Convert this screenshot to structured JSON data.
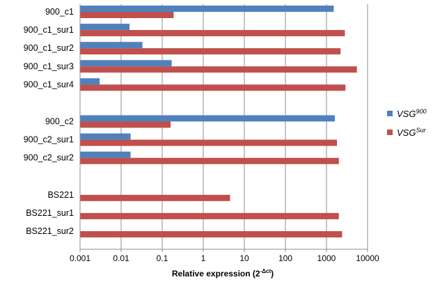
{
  "chart_data": {
    "type": "bar",
    "orientation": "horizontal",
    "x_scale": "log",
    "xlim": [
      0.001,
      10000
    ],
    "x_ticks": [
      "0.001",
      "0.01",
      "0.1",
      "1",
      "10",
      "100",
      "1000",
      "10000"
    ],
    "grid": true,
    "legend_position": "right",
    "xlabel": {
      "main": "Relative expression (2",
      "sup": "-Δct",
      "close": ")"
    },
    "categories": [
      "900_c1",
      "900_c1_sur1",
      "900_c1_sur2",
      "900_c1_sur3",
      "900_c1_sur4",
      "900_c2",
      "900_c2_sur1",
      "900_c2_sur2",
      "BS221",
      "BS221_sur1",
      "BS221_sur2"
    ],
    "groups": [
      [
        0,
        1,
        2,
        3,
        4
      ],
      [
        5,
        6,
        7
      ],
      [
        8,
        9,
        10
      ]
    ],
    "series": [
      {
        "name": "VSG",
        "name_sup": "900",
        "color": "#4f81bd",
        "values": [
          1500,
          0.016,
          0.033,
          0.17,
          0.003,
          1600,
          0.017,
          0.017,
          null,
          null,
          null
        ]
      },
      {
        "name": "VSG",
        "name_sup": "Sur",
        "color": "#c0504d",
        "values": [
          0.19,
          2800,
          2200,
          5500,
          2900,
          0.16,
          1800,
          2000,
          4.5,
          2000,
          2400
        ]
      }
    ]
  }
}
